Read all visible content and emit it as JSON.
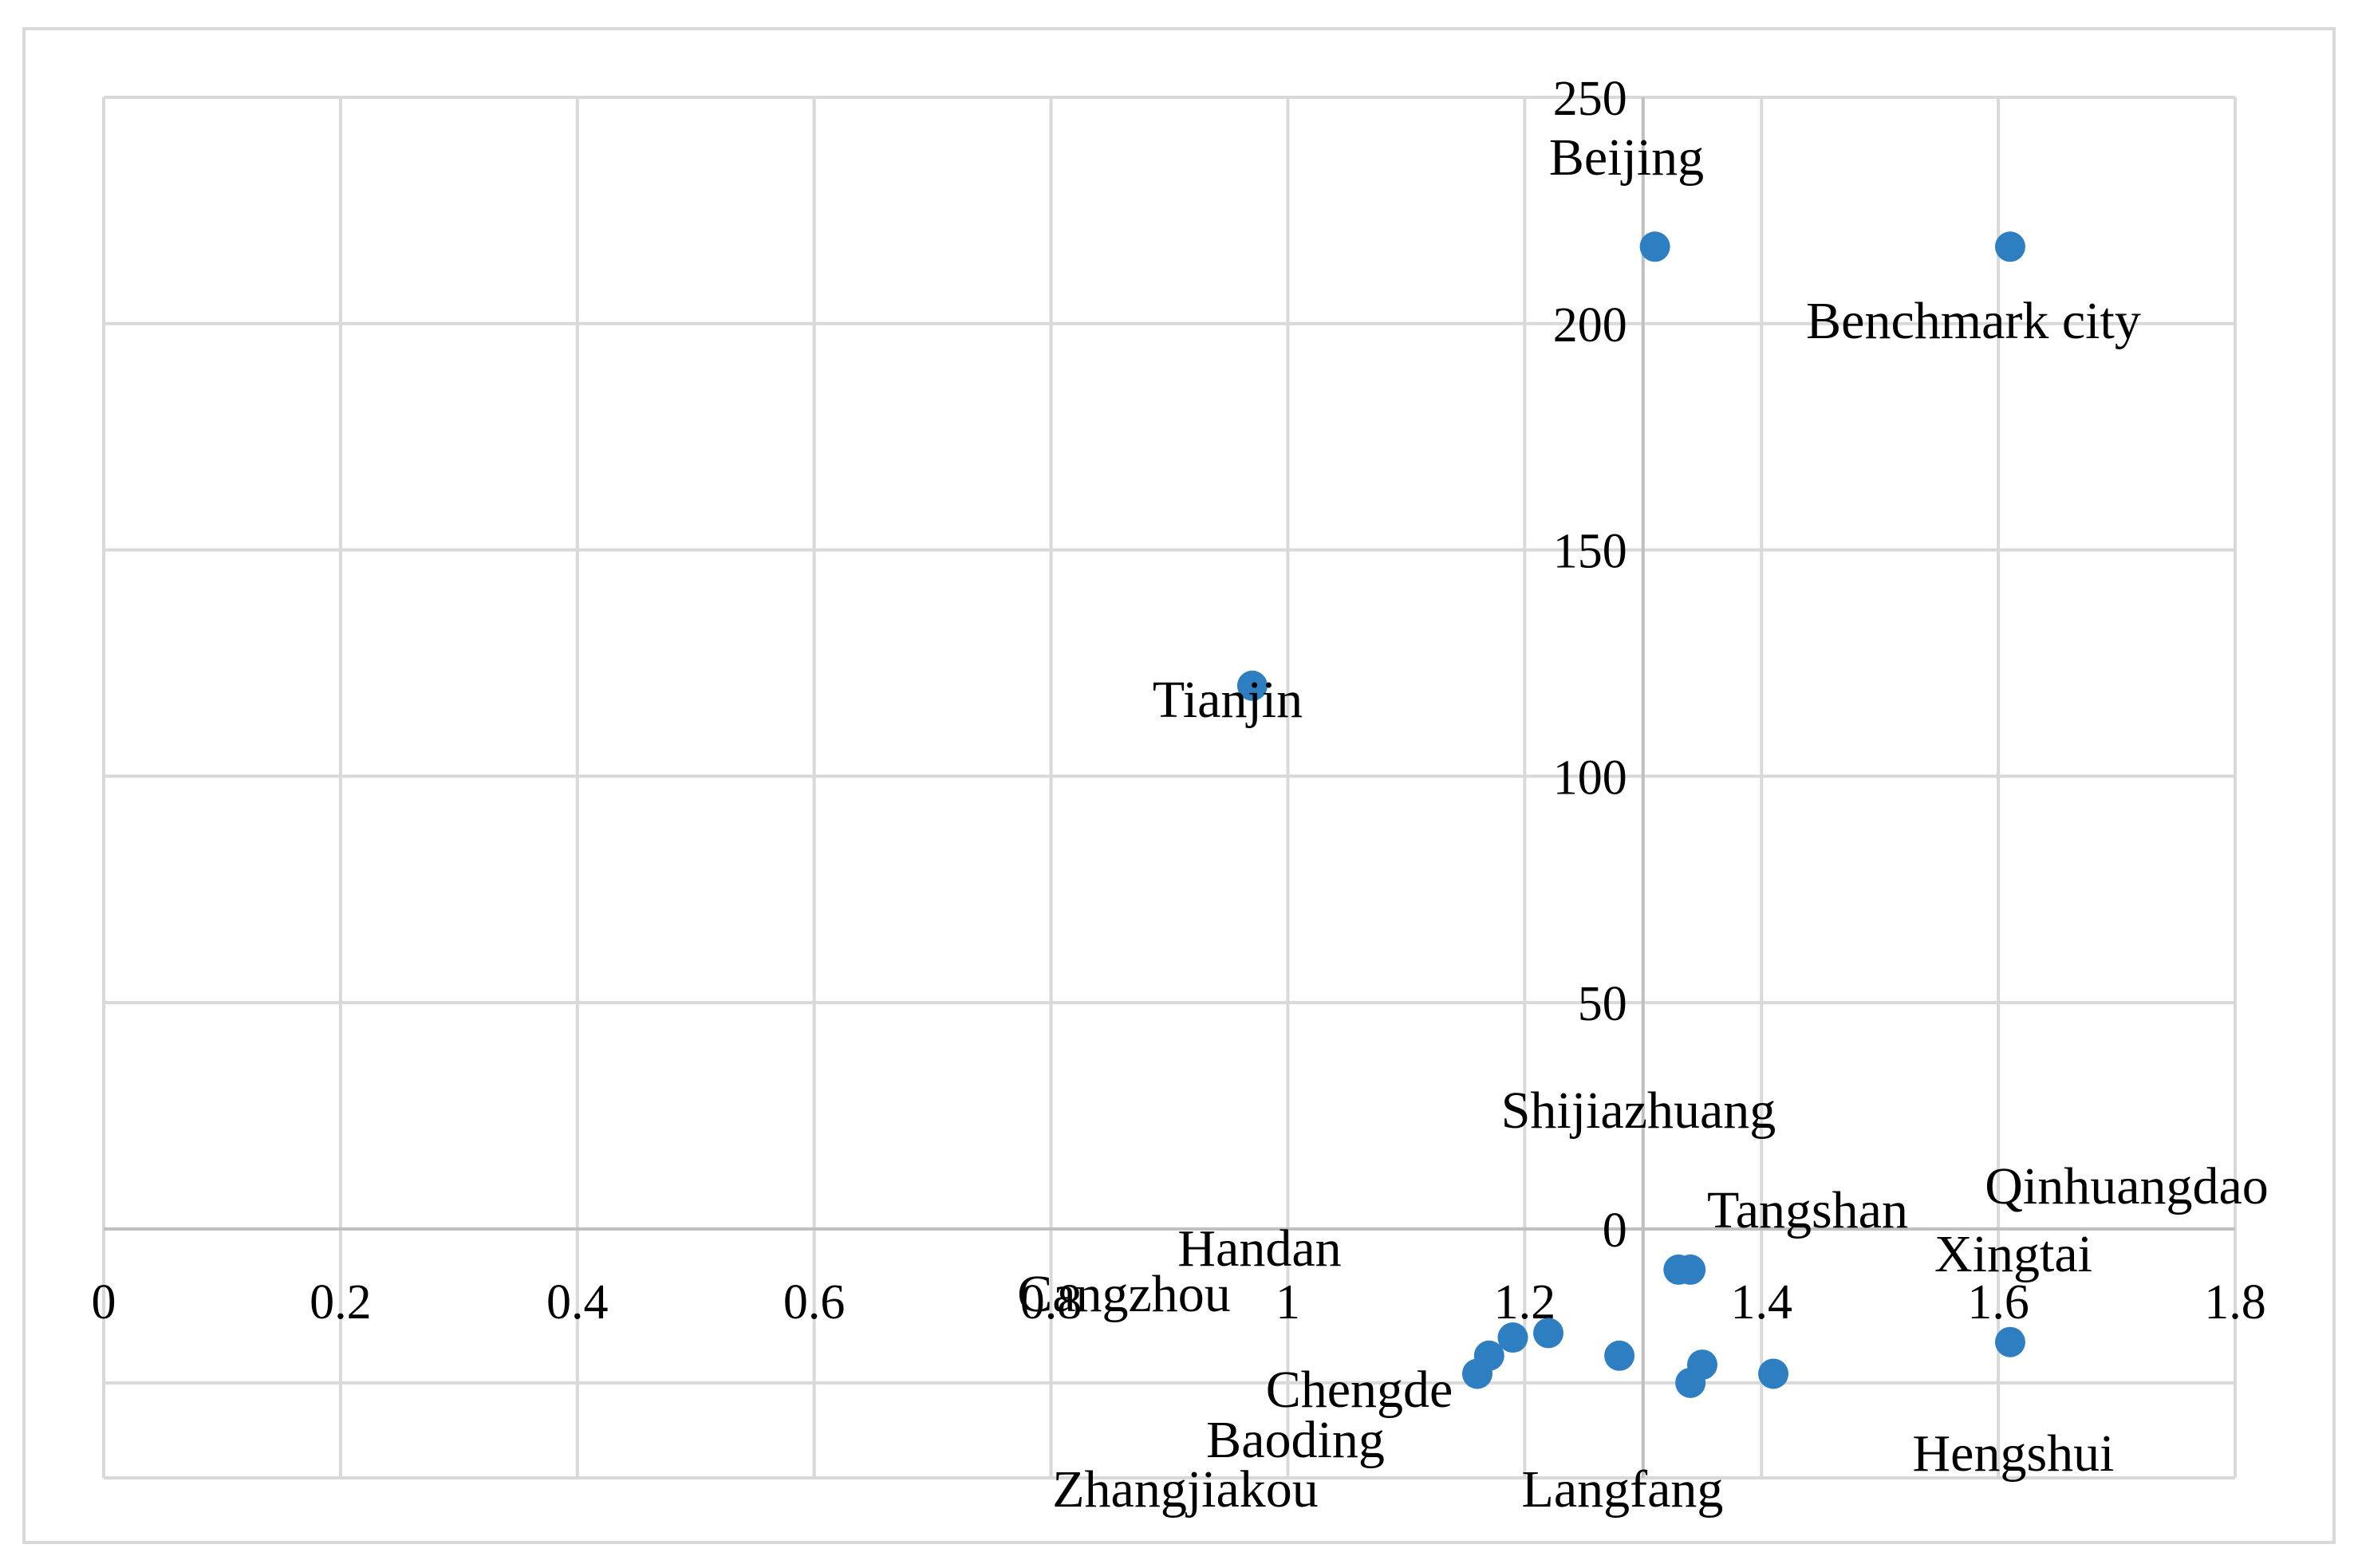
{
  "chart_data": {
    "type": "scatter",
    "title": "",
    "xlabel": "",
    "ylabel": "",
    "xlim": [
      0,
      1.8
    ],
    "ylim": [
      -55,
      250
    ],
    "x_ticks": [
      "0",
      "0.2",
      "0.4",
      "0.6",
      "0.8",
      "1",
      "1.2",
      "1.4",
      "1.6",
      "1.8"
    ],
    "x_tick_values": [
      0,
      0.2,
      0.4,
      0.6,
      0.8,
      1,
      1.2,
      1.4,
      1.6,
      1.8
    ],
    "y_ticks": [
      "0",
      "50",
      "100",
      "150",
      "200",
      "250"
    ],
    "y_tick_values": [
      0,
      50,
      100,
      150,
      200,
      250
    ],
    "y_gridlines": [
      -34,
      0,
      50,
      100,
      150,
      200,
      250
    ],
    "x_axis_crosses_y": 0,
    "y_axis_crosses_x": 1.3,
    "grid": true,
    "marker_color": "#2e7fc1",
    "points": [
      {
        "name": "Beijing",
        "x": 1.31,
        "y": 217
      },
      {
        "name": "Benchmark city",
        "x": 1.61,
        "y": 217
      },
      {
        "name": "Tianjin",
        "x": 0.97,
        "y": 120
      },
      {
        "name": "Shijiazhuang",
        "x": 1.34,
        "y": -9
      },
      {
        "name": "Tangshan",
        "x": 1.33,
        "y": -9
      },
      {
        "name": "Qinhuangdao",
        "x": 1.61,
        "y": -25
      },
      {
        "name": "Xingtai",
        "x": 1.22,
        "y": -23
      },
      {
        "name": "Handan",
        "x": 1.19,
        "y": -24
      },
      {
        "name": "Cangzhou",
        "x": 1.17,
        "y": -28
      },
      {
        "name": "Chengde",
        "x": 1.28,
        "y": -28
      },
      {
        "name": "Baoding",
        "x": 1.35,
        "y": -30
      },
      {
        "name": "Zhangjiakou",
        "x": 1.16,
        "y": -32
      },
      {
        "name": "Langfang",
        "x": 1.34,
        "y": -34
      },
      {
        "name": "Hengshui",
        "x": 1.41,
        "y": -32
      }
    ],
    "labels": [
      {
        "text": "Beijing"
      },
      {
        "text": "Benchmark city"
      },
      {
        "text": "Tianjin"
      },
      {
        "text": "Shijiazhuang"
      },
      {
        "text": "Tangshan"
      },
      {
        "text": "Qinhuangdao"
      },
      {
        "text": "Xingtai"
      },
      {
        "text": "Handan"
      },
      {
        "text": "Cangzhou"
      },
      {
        "text": "Chengde"
      },
      {
        "text": "Baoding"
      },
      {
        "text": "Zhangjiakou"
      },
      {
        "text": "Langfang"
      },
      {
        "text": "Hengshui"
      }
    ]
  }
}
